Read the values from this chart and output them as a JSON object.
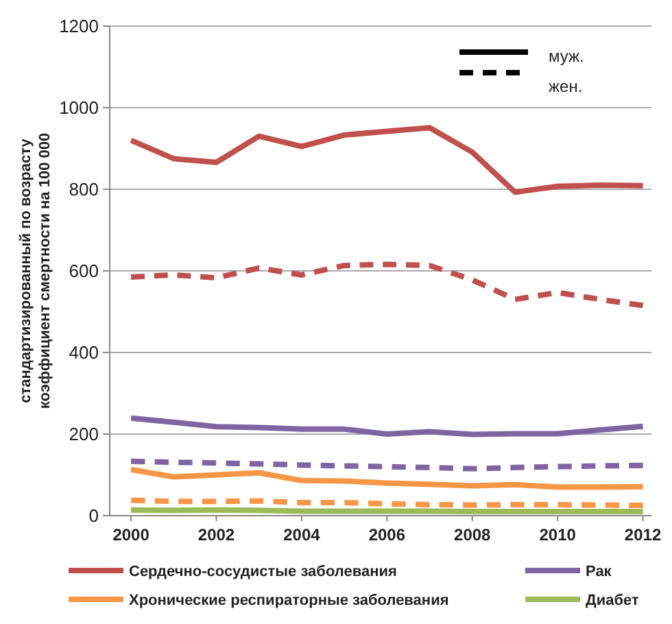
{
  "chart_data": {
    "type": "line",
    "ylabel": "стандартизированный по возрасту\nкоэффициент смертности на 100 000",
    "x": [
      2000,
      2001,
      2002,
      2003,
      2004,
      2005,
      2006,
      2007,
      2008,
      2009,
      2010,
      2011,
      2012
    ],
    "xlim": [
      1999.5,
      2012.2
    ],
    "xticks": [
      2000,
      2002,
      2004,
      2006,
      2008,
      2010,
      2012
    ],
    "ylim": [
      0,
      1200
    ],
    "yticks": [
      0,
      200,
      400,
      600,
      800,
      1000,
      1200
    ],
    "grid": "y",
    "legend": "bottom",
    "marker": "none",
    "series": [
      {
        "name": "Сердечно-сосудистые заболевания",
        "color": "#c0504d",
        "line_style": "solid",
        "values": [
          920,
          875,
          866,
          930,
          905,
          933,
          942,
          951,
          891,
          793,
          807,
          810,
          809
        ]
      },
      {
        "color": "#c0504d",
        "line_style": "dashed",
        "values": [
          585,
          590,
          583,
          607,
          590,
          613,
          616,
          613,
          578,
          530,
          547,
          530,
          515
        ]
      },
      {
        "name": "Рак",
        "color": "#8064a2",
        "line_style": "solid",
        "values": [
          239,
          229,
          218,
          216,
          212,
          212,
          200,
          206,
          199,
          201,
          201,
          210,
          219
        ]
      },
      {
        "color": "#8064a2",
        "line_style": "dashed",
        "values": [
          133,
          131,
          129,
          127,
          124,
          122,
          120,
          118,
          115,
          118,
          120,
          122,
          123
        ]
      },
      {
        "name": "Хронические респираторные заболевания",
        "color": "#f79646",
        "line_style": "solid",
        "values": [
          113,
          95,
          100,
          105,
          86,
          85,
          80,
          77,
          73,
          76,
          70,
          70,
          71
        ]
      },
      {
        "color": "#f79646",
        "line_style": "dashed",
        "values": [
          38,
          35,
          35,
          36,
          32,
          32,
          29,
          27,
          26,
          27,
          27,
          26,
          25
        ]
      },
      {
        "name": "Диабет",
        "color": "#9bbb59",
        "line_style": "solid",
        "values": [
          14,
          13,
          14,
          13,
          11,
          11,
          11,
          11,
          10,
          10,
          10,
          10,
          10
        ]
      }
    ],
    "annotations": [
      "муж.",
      "жен."
    ]
  }
}
